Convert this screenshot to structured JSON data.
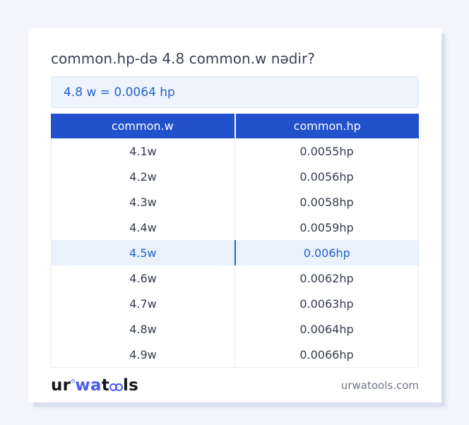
{
  "card": {
    "title": "common.hp-də 4.8 common.w nədir?",
    "answer": "4.8 w = 0.0064 hp"
  },
  "table": {
    "columns": [
      "common.w",
      "common.hp"
    ],
    "rows": [
      {
        "w": "4.1w",
        "hp": "0.0055hp"
      },
      {
        "w": "4.2w",
        "hp": "0.0056hp"
      },
      {
        "w": "4.3w",
        "hp": "0.0058hp"
      },
      {
        "w": "4.4w",
        "hp": "0.0059hp"
      },
      {
        "w": "4.5w",
        "hp": "0.006hp"
      },
      {
        "w": "4.6w",
        "hp": "0.0062hp"
      },
      {
        "w": "4.7w",
        "hp": "0.0063hp"
      },
      {
        "w": "4.8w",
        "hp": "0.0064hp"
      },
      {
        "w": "4.9w",
        "hp": "0.0066hp"
      }
    ],
    "highlighted_row": "4.5w"
  },
  "footer": {
    "logo": {
      "part1": "ur",
      "part2": "wa",
      "part3": "t",
      "glasses": "oo",
      "part4": "ls"
    },
    "domain": "urwatools.com"
  },
  "colors": {
    "page_bg": "#f3f5fa",
    "header_blue": "#2251cc",
    "highlight_bg": "#eaf2fd",
    "highlight_text": "#2361c8",
    "answer_bg": "#eef4fd",
    "answer_text": "#2361c8",
    "logo_blue": "#4a5cf0"
  }
}
